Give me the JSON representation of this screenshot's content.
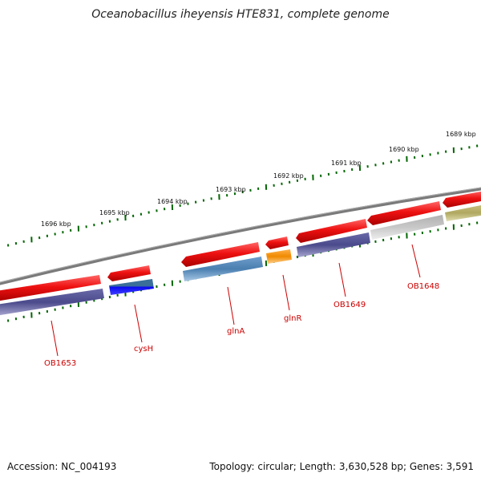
{
  "title": "Oceanobacillus iheyensis HTE831, complete genome",
  "footer": {
    "accession": "Accession: NC_004193",
    "topology": "Topology: circular; Length: 3,630,528 bp; Genes: 3,591"
  },
  "scale": {
    "tick_labels": [
      "1696 kbp",
      "1695 kbp",
      "1694 kbp",
      "1693 kbp",
      "1692 kbp",
      "1691 kbp",
      "1690 kbp",
      "1689 kbp"
    ]
  },
  "genes": [
    {
      "name": "OB1653"
    },
    {
      "name": "cysH"
    },
    {
      "name": "glnA"
    },
    {
      "name": "glnR"
    },
    {
      "name": "OB1649"
    },
    {
      "name": "OB1648"
    }
  ],
  "colors": {
    "backbone": "#7a7a7a",
    "forward": "#ee1111",
    "cog_purple": "#4b4a8c",
    "cog_blue": "#0a0af0",
    "cog_steel": "#4a7fb0",
    "cog_orange": "#f08a00",
    "cog_gray": "#c0c0c0",
    "cog_khaki": "#b0a860",
    "ticks": "#006600",
    "label": "#cc0000"
  }
}
